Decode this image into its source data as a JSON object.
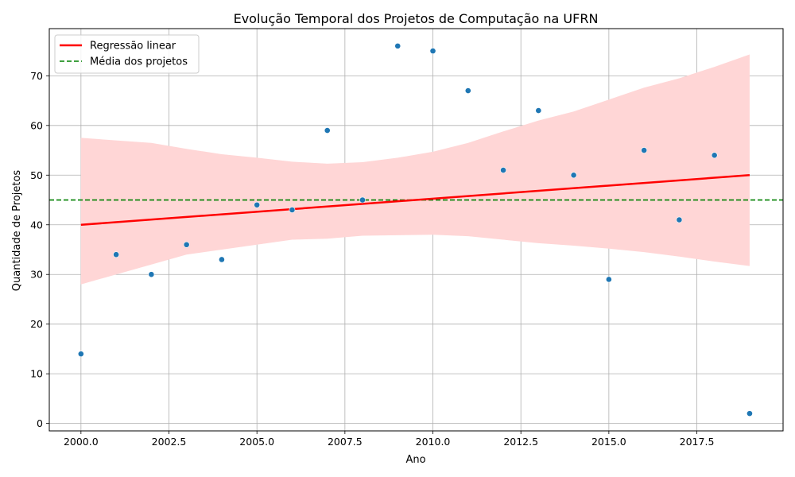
{
  "chart_data": {
    "type": "scatter",
    "title": "Evolução Temporal dos Projetos de Computação na UFRN",
    "xlabel": "Ano",
    "ylabel": "Quantidade de Projetos",
    "xlim": [
      1999.1,
      2019.95
    ],
    "ylim": [
      -1.5,
      79.5
    ],
    "xticks": [
      2000,
      2002.5,
      2005,
      2007.5,
      2010,
      2012.5,
      2015,
      2017.5
    ],
    "xtick_labels": [
      "2000.0",
      "2002.5",
      "2005.0",
      "2007.5",
      "2010.0",
      "2012.5",
      "2015.0",
      "2017.5"
    ],
    "yticks": [
      0,
      10,
      20,
      30,
      40,
      50,
      60,
      70
    ],
    "ytick_labels": [
      "0",
      "10",
      "20",
      "30",
      "40",
      "50",
      "60",
      "70"
    ],
    "grid": true,
    "legend_position": "top-left",
    "points": {
      "x": [
        2000,
        2001,
        2002,
        2003,
        2004,
        2005,
        2006,
        2007,
        2008,
        2009,
        2010,
        2011,
        2012,
        2013,
        2014,
        2015,
        2016,
        2017,
        2018,
        2019
      ],
      "y": [
        14,
        34,
        30,
        36,
        33,
        44,
        43,
        59,
        45,
        76,
        75,
        67,
        51,
        63,
        50,
        29,
        55,
        41,
        54,
        2
      ],
      "color": "#1f77b4"
    },
    "regression": {
      "name": "Regressão linear",
      "color": "#ff0000",
      "x": [
        2000,
        2019
      ],
      "y": [
        40,
        50
      ]
    },
    "confidence_band": {
      "color": "#ffd6d6",
      "x": [
        2000,
        2001,
        2002,
        2003,
        2004,
        2005,
        2006,
        2007,
        2008,
        2009,
        2010,
        2011,
        2012,
        2013,
        2014,
        2015,
        2016,
        2017,
        2018,
        2019
      ],
      "upper": [
        57.5,
        57.0,
        56.5,
        55.3,
        54.2,
        53.5,
        52.7,
        52.3,
        52.6,
        53.5,
        54.7,
        56.5,
        58.8,
        61.0,
        62.8,
        65.2,
        67.6,
        69.5,
        71.8,
        74.3
      ],
      "lower": [
        28.0,
        30.0,
        32.0,
        34.0,
        35.0,
        36.0,
        37.0,
        37.2,
        37.8,
        37.9,
        38.0,
        37.7,
        37.0,
        36.3,
        35.8,
        35.2,
        34.5,
        33.6,
        32.6,
        31.7
      ]
    },
    "mean_line": {
      "name": "Média dos projetos",
      "color": "#008000",
      "y": 45
    }
  }
}
